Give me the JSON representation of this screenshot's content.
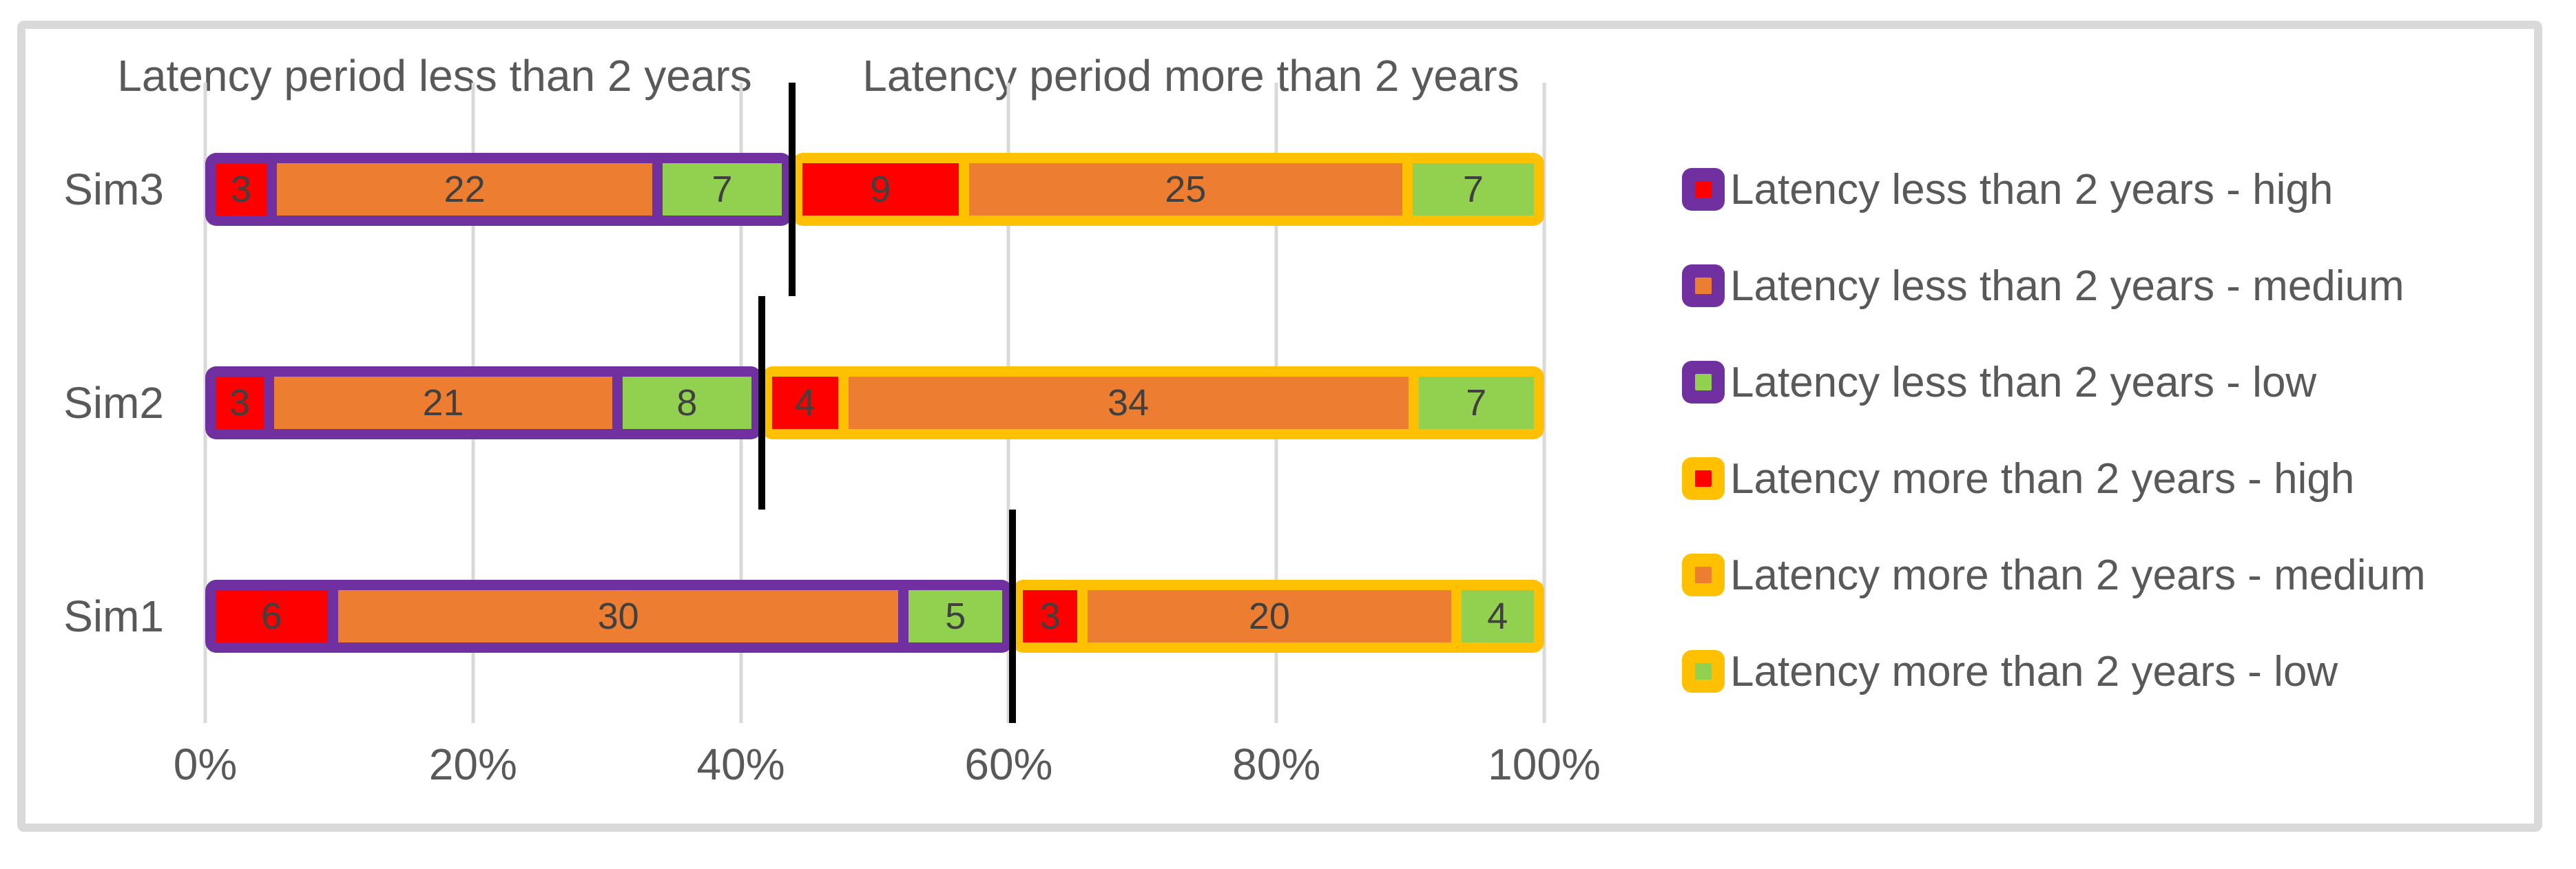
{
  "figure": {
    "background": "#FFFFFF",
    "border_color": "#D9D9D9"
  },
  "chart_data": {
    "type": "bar",
    "orientation": "horizontal",
    "stacked": "100%",
    "titles": {
      "left": "Latency period less than 2 years",
      "right": "Latency period more than 2 years"
    },
    "categories": [
      "Sim3",
      "Sim2",
      "Sim1"
    ],
    "xticks": [
      "0%",
      "20%",
      "40%",
      "60%",
      "80%",
      "100%"
    ],
    "x_range_pct": [
      0,
      100
    ],
    "grid": true,
    "legend_position": "right",
    "group_borders": {
      "less_than_2_years": "#7030A0",
      "more_than_2_years": "#FFC000"
    },
    "series": [
      {
        "name": "Latency less than 2 years - high",
        "fill": "#FF0000",
        "border": "#7030A0",
        "values": [
          3,
          3,
          6
        ]
      },
      {
        "name": "Latency less than 2 years - medium",
        "fill": "#ED7D31",
        "border": "#7030A0",
        "values": [
          22,
          21,
          30
        ]
      },
      {
        "name": "Latency less than 2 years - low",
        "fill": "#92D050",
        "border": "#7030A0",
        "values": [
          7,
          8,
          5
        ]
      },
      {
        "name": "Latency more than 2 years - high",
        "fill": "#FF0000",
        "border": "#FFC000",
        "values": [
          9,
          4,
          3
        ]
      },
      {
        "name": "Latency more than 2 years - medium",
        "fill": "#ED7D31",
        "border": "#FFC000",
        "values": [
          25,
          34,
          20
        ]
      },
      {
        "name": "Latency more than 2 years - low",
        "fill": "#92D050",
        "border": "#FFC000",
        "values": [
          7,
          7,
          4
        ]
      }
    ],
    "divider_left_group_share_pct": {
      "Sim3": 43.8,
      "Sim2": 41.6,
      "Sim1": 60.3
    },
    "colors": {
      "gridline": "#D9D9D9",
      "axis_text": "#595959",
      "value_label_text": "#404040",
      "divider_line": "#000000"
    }
  }
}
